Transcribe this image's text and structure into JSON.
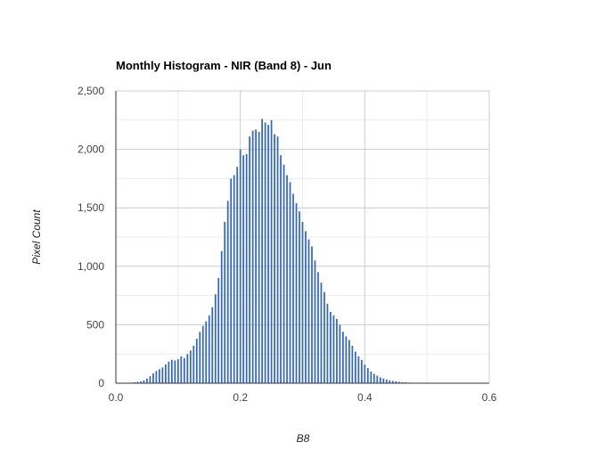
{
  "chart_data": {
    "type": "bar",
    "title": "Monthly Histogram - NIR (Band 8) - Jun",
    "xlabel": "B8",
    "ylabel": "Pixel Count",
    "xlim": [
      0,
      0.6
    ],
    "ylim": [
      0,
      2500
    ],
    "x_ticks": [
      0,
      0.2,
      0.4,
      0.6
    ],
    "x_tick_labels": [
      "0.0",
      "0.2",
      "0.4",
      "0.6"
    ],
    "y_ticks": [
      0,
      500,
      1000,
      1500,
      2000,
      2500
    ],
    "y_tick_labels": [
      "0",
      "500",
      "1,000",
      "1,500",
      "2,000",
      "2,500"
    ],
    "grid": true,
    "legend": "none",
    "bar_color": "#3366cc",
    "bin_width": 0.0025,
    "series": [
      {
        "x": [
          0.02,
          0.025,
          0.03,
          0.035,
          0.04,
          0.045,
          0.05,
          0.055,
          0.06,
          0.065,
          0.07,
          0.075,
          0.08,
          0.085,
          0.09,
          0.095,
          0.1,
          0.105,
          0.11,
          0.115,
          0.12,
          0.125,
          0.13,
          0.135,
          0.14,
          0.145,
          0.15,
          0.155,
          0.16,
          0.165,
          0.17,
          0.175,
          0.18,
          0.185,
          0.19,
          0.195,
          0.2,
          0.205,
          0.21,
          0.215,
          0.22,
          0.225,
          0.23,
          0.235,
          0.24,
          0.245,
          0.25,
          0.255,
          0.26,
          0.265,
          0.27,
          0.275,
          0.28,
          0.285,
          0.29,
          0.295,
          0.3,
          0.305,
          0.31,
          0.315,
          0.32,
          0.325,
          0.33,
          0.335,
          0.34,
          0.345,
          0.35,
          0.355,
          0.36,
          0.365,
          0.37,
          0.375,
          0.38,
          0.385,
          0.39,
          0.395,
          0.4,
          0.405,
          0.41,
          0.415,
          0.42,
          0.425,
          0.43,
          0.435,
          0.44,
          0.445,
          0.45,
          0.455,
          0.46,
          0.465,
          0.47,
          0.475,
          0.48,
          0.485,
          0.49,
          0.495,
          0.5,
          0.505,
          0.51,
          0.515,
          0.52
        ],
        "values": [
          2,
          4,
          8,
          12,
          15,
          25,
          40,
          60,
          85,
          105,
          120,
          135,
          160,
          185,
          200,
          195,
          205,
          230,
          215,
          250,
          280,
          320,
          380,
          440,
          490,
          530,
          580,
          650,
          760,
          900,
          1130,
          1380,
          1560,
          1750,
          1780,
          1850,
          2000,
          1950,
          1960,
          2110,
          2160,
          2170,
          2150,
          2260,
          2230,
          2210,
          2250,
          2130,
          2110,
          1950,
          1870,
          1780,
          1720,
          1620,
          1540,
          1470,
          1380,
          1300,
          1230,
          1170,
          1050,
          950,
          860,
          780,
          680,
          610,
          580,
          550,
          500,
          440,
          400,
          370,
          320,
          270,
          230,
          200,
          160,
          130,
          100,
          80,
          65,
          50,
          40,
          32,
          25,
          20,
          15,
          12,
          9,
          7,
          5,
          4,
          3,
          2,
          2,
          1,
          1,
          1,
          1,
          0,
          0
        ]
      }
    ]
  }
}
